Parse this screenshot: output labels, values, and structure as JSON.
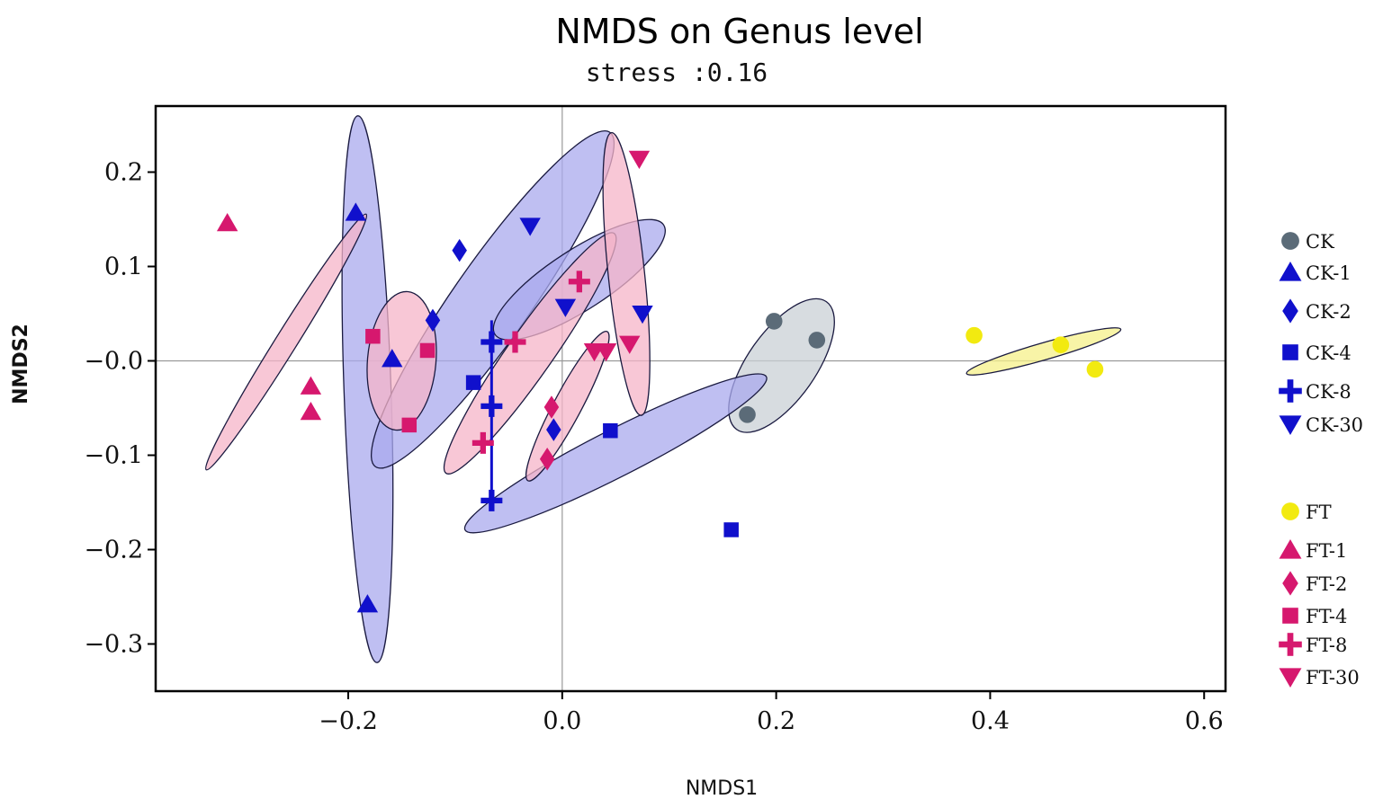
{
  "chart_data": {
    "type": "scatter",
    "title": "NMDS on Genus level",
    "subtitle": "stress :0.16",
    "xlabel": "NMDS1",
    "ylabel": "NMDS2",
    "xlim": [
      -0.38,
      0.62
    ],
    "ylim": [
      -0.35,
      0.27
    ],
    "xticks": [
      -0.2,
      0.0,
      0.2,
      0.4,
      0.6
    ],
    "xtick_labels": [
      "−0.2",
      "0.0",
      "0.2",
      "0.4",
      "0.6"
    ],
    "yticks": [
      0.2,
      0.1,
      0.0,
      -0.1,
      -0.2,
      -0.3
    ],
    "ytick_labels": [
      "0.2",
      "0.1",
      "−0.0",
      "−0.1",
      "−0.2",
      "−0.3"
    ],
    "reference_lines": {
      "x": 0,
      "y": 0
    },
    "grid": false,
    "legend_position": "right",
    "colors": {
      "CK": "#5b6b78",
      "CK_fill": "#c9d0d6",
      "CK_series": "#1010cc",
      "CK_series_fill": "#aaaaee",
      "FT": "#f2ea10",
      "FT_fill": "#f6f08a",
      "FT_series": "#d6186e",
      "FT_series_fill": "#f6b4c8",
      "reference_line": "#999999"
    },
    "series": [
      {
        "name": "CK",
        "marker": "circle",
        "color": "#5b6b78",
        "fill": "#c9d0d6",
        "points": [
          [
            0.198,
            0.042
          ],
          [
            0.238,
            0.022
          ],
          [
            0.173,
            -0.057
          ]
        ]
      },
      {
        "name": "CK-1",
        "marker": "triangle-up",
        "color": "#1010cc",
        "fill": "#aaaaee",
        "points": [
          [
            -0.193,
            0.157
          ],
          [
            -0.159,
            0.002
          ],
          [
            -0.182,
            -0.258
          ]
        ]
      },
      {
        "name": "CK-2",
        "marker": "diamond",
        "color": "#1010cc",
        "fill": "#aaaaee",
        "points": [
          [
            -0.096,
            0.117
          ],
          [
            -0.121,
            0.043
          ],
          [
            -0.008,
            -0.073
          ]
        ]
      },
      {
        "name": "CK-4",
        "marker": "square",
        "color": "#1010cc",
        "fill": "#aaaaee",
        "points": [
          [
            -0.083,
            -0.023
          ],
          [
            0.045,
            -0.074
          ],
          [
            0.158,
            -0.179
          ]
        ]
      },
      {
        "name": "CK-8",
        "marker": "plus",
        "color": "#1010cc",
        "fill": "#aaaaee",
        "points": [
          [
            -0.066,
            0.02
          ],
          [
            -0.066,
            -0.048
          ],
          [
            -0.066,
            -0.148
          ]
        ]
      },
      {
        "name": "CK-30",
        "marker": "triangle-down",
        "color": "#1010cc",
        "fill": "#aaaaee",
        "points": [
          [
            -0.03,
            0.143
          ],
          [
            0.003,
            0.057
          ],
          [
            0.075,
            0.05
          ]
        ]
      },
      {
        "name": "FT",
        "marker": "circle",
        "color": "#f2ea10",
        "fill": "#f6f08a",
        "points": [
          [
            0.385,
            0.027
          ],
          [
            0.466,
            0.017
          ],
          [
            0.498,
            -0.009
          ]
        ]
      },
      {
        "name": "FT-1",
        "marker": "triangle-up",
        "color": "#d6186e",
        "fill": "#f6b4c8",
        "points": [
          [
            -0.313,
            0.146
          ],
          [
            -0.235,
            -0.027
          ],
          [
            -0.235,
            -0.054
          ]
        ]
      },
      {
        "name": "FT-2",
        "marker": "diamond",
        "color": "#d6186e",
        "fill": "#f6b4c8",
        "points": [
          [
            -0.01,
            -0.049
          ],
          [
            -0.014,
            -0.104
          ]
        ]
      },
      {
        "name": "FT-4",
        "marker": "square",
        "color": "#d6186e",
        "fill": "#f6b4c8",
        "points": [
          [
            -0.177,
            0.026
          ],
          [
            -0.126,
            0.011
          ],
          [
            -0.143,
            -0.068
          ]
        ]
      },
      {
        "name": "FT-8",
        "marker": "plus",
        "color": "#d6186e",
        "fill": "#f6b4c8",
        "points": [
          [
            0.016,
            0.084
          ],
          [
            -0.044,
            0.02
          ],
          [
            -0.074,
            -0.087
          ]
        ]
      },
      {
        "name": "FT-30",
        "marker": "triangle-down",
        "color": "#d6186e",
        "fill": "#f6b4c8",
        "points": [
          [
            0.072,
            0.214
          ],
          [
            0.063,
            0.018
          ],
          [
            0.041,
            0.01
          ],
          [
            0.03,
            0.01
          ]
        ]
      }
    ],
    "ellipses": [
      {
        "group": "CK",
        "cx": 0.205,
        "cy": -0.005,
        "rx": 0.073,
        "ry": 0.032,
        "angle": -55
      },
      {
        "group": "CK-1",
        "cx": -0.182,
        "cy": -0.03,
        "rx": 0.256,
        "ry": 0.022,
        "angle": 88
      },
      {
        "group": "CK-2",
        "cx": -0.065,
        "cy": 0.065,
        "rx": 0.191,
        "ry": 0.036,
        "angle": -55
      },
      {
        "group": "CK-4",
        "cx": 0.05,
        "cy": -0.098,
        "rx": 0.158,
        "ry": 0.022,
        "angle": -27
      },
      {
        "group": "CK-30",
        "cx": 0.016,
        "cy": 0.086,
        "rx": 0.094,
        "ry": 0.028,
        "angle": -33
      },
      {
        "group": "FT",
        "cx": 0.45,
        "cy": 0.01,
        "rx": 0.075,
        "ry": 0.008,
        "angle": -16
      },
      {
        "group": "FT-1",
        "cx": -0.258,
        "cy": 0.02,
        "rx": 0.141,
        "ry": 0.01,
        "angle": -58
      },
      {
        "group": "FT-2",
        "cx": 0.005,
        "cy": -0.048,
        "rx": 0.079,
        "ry": 0.013,
        "angle": -62
      },
      {
        "group": "FT-4",
        "cx": -0.15,
        "cy": 0.0,
        "rx": 0.065,
        "ry": 0.032,
        "angle": 95
      },
      {
        "group": "FT-8",
        "cx": -0.03,
        "cy": 0.008,
        "rx": 0.137,
        "ry": 0.021,
        "angle": -55
      },
      {
        "group": "FT-30",
        "cx": 0.06,
        "cy": 0.092,
        "rx": 0.133,
        "ry": 0.017,
        "angle": 84
      }
    ],
    "ck8_whisker": {
      "x": -0.066,
      "y1": 0.043,
      "y2": -0.143
    }
  }
}
